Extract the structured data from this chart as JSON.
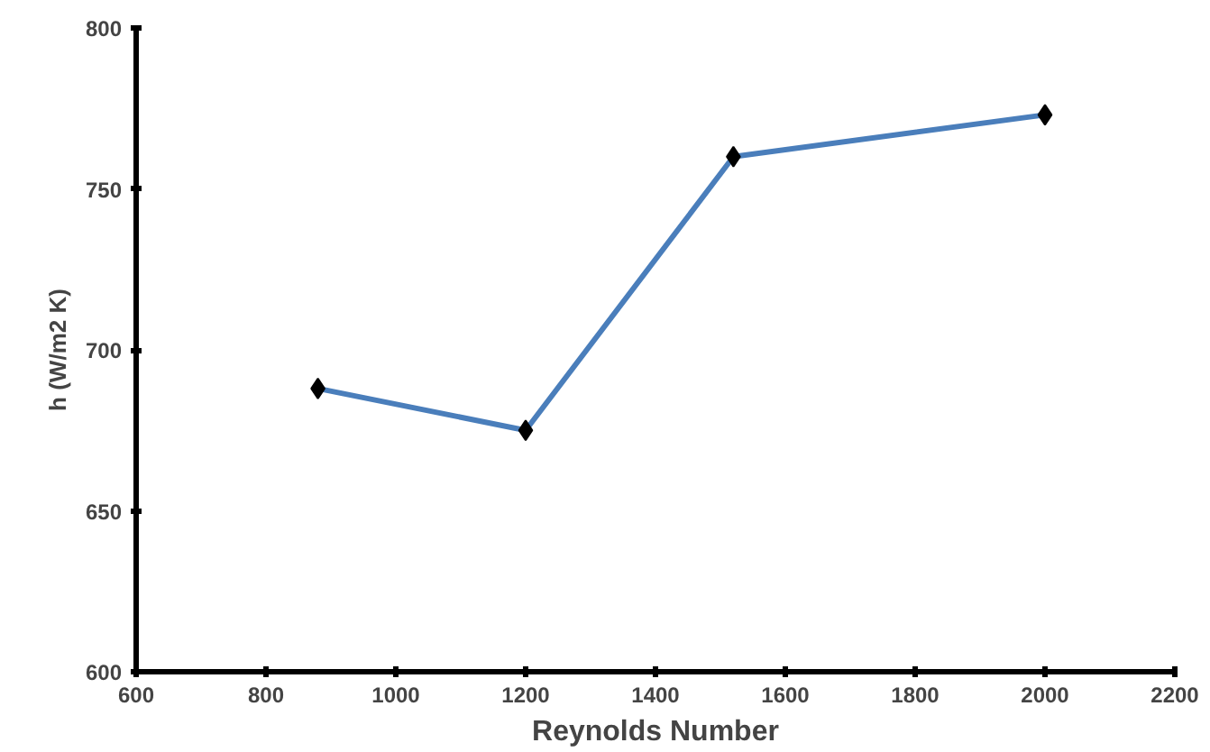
{
  "chart_data": {
    "type": "line",
    "xlabel": "Reynolds Number",
    "ylabel": "h (W/m2 K)",
    "x": [
      880,
      1200,
      1520,
      2000
    ],
    "series": [
      {
        "color": "#4a7ebb",
        "values": [
          688,
          675,
          760,
          773
        ]
      }
    ],
    "xlim": [
      600,
      2200
    ],
    "xticks": [
      600,
      800,
      1000,
      1200,
      1400,
      1600,
      1800,
      2000,
      2200
    ],
    "ylim": [
      600,
      800
    ],
    "yticks": [
      600,
      650,
      700,
      750,
      800
    ],
    "grid": false,
    "marker": "diamond",
    "line_style": "solid"
  }
}
